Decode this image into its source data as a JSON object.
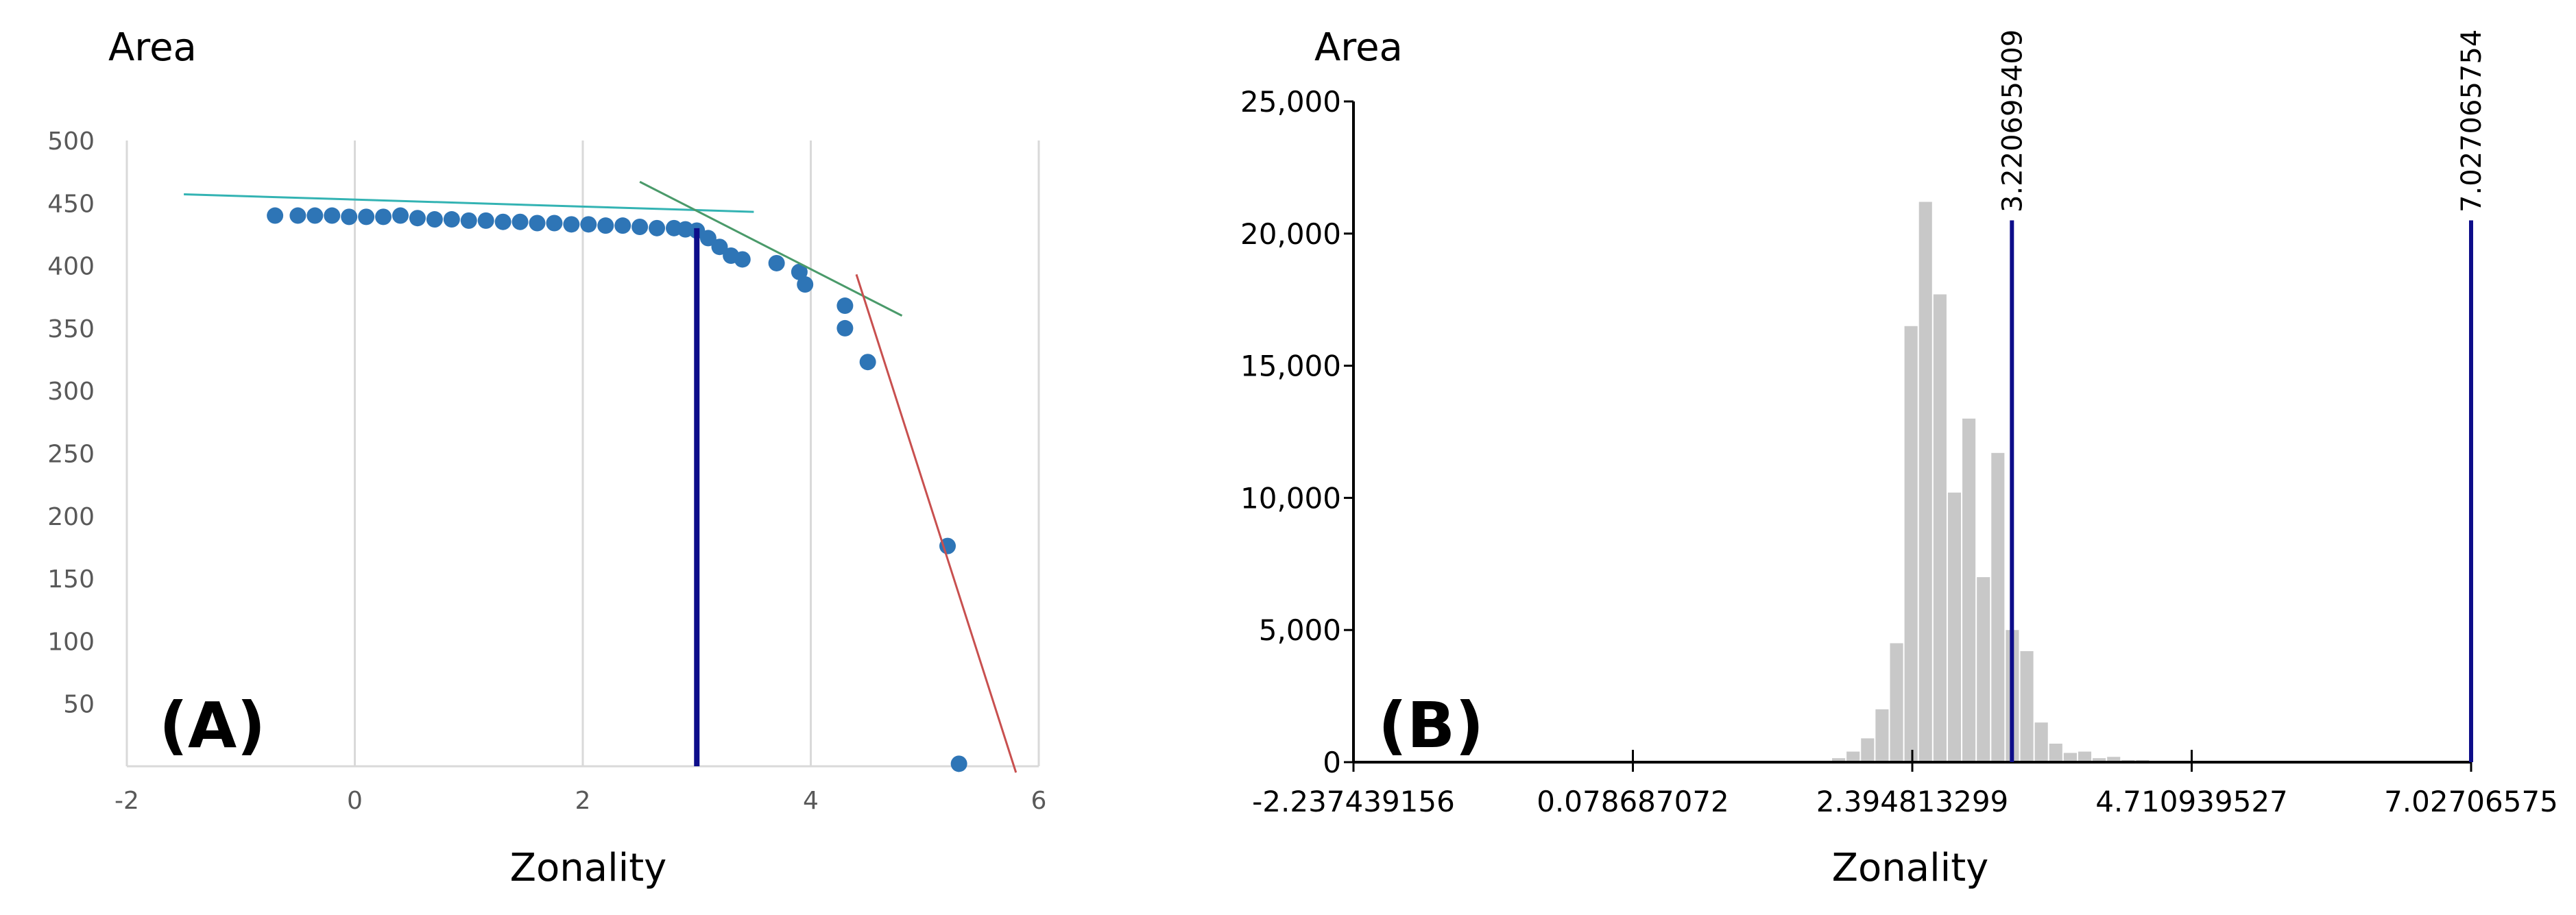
{
  "chart_data": [
    {
      "panel_label": "(A)",
      "type": "scatter",
      "ylabel": "Area",
      "xlabel": "Zonality",
      "xlim": [
        -2,
        6
      ],
      "ylim": [
        0,
        500
      ],
      "x_ticks": [
        "-2",
        "0",
        "2",
        "4",
        "6"
      ],
      "y_ticks": [
        "50",
        "100",
        "150",
        "200",
        "250",
        "300",
        "350",
        "400",
        "450",
        "500"
      ],
      "grid": true,
      "colors": {
        "points": "#2e75b6",
        "fit1": "#33b3b3",
        "fit2": "#4a9a6a",
        "fit3": "#c8504f",
        "threshold": "#0d0d8a"
      },
      "points": [
        {
          "x": -0.7,
          "y": 440
        },
        {
          "x": -0.5,
          "y": 440
        },
        {
          "x": -0.35,
          "y": 440
        },
        {
          "x": -0.2,
          "y": 440
        },
        {
          "x": -0.05,
          "y": 439
        },
        {
          "x": 0.1,
          "y": 439
        },
        {
          "x": 0.25,
          "y": 439
        },
        {
          "x": 0.4,
          "y": 440
        },
        {
          "x": 0.55,
          "y": 438
        },
        {
          "x": 0.7,
          "y": 437
        },
        {
          "x": 0.85,
          "y": 437
        },
        {
          "x": 1.0,
          "y": 436
        },
        {
          "x": 1.15,
          "y": 436
        },
        {
          "x": 1.3,
          "y": 435
        },
        {
          "x": 1.45,
          "y": 435
        },
        {
          "x": 1.6,
          "y": 434
        },
        {
          "x": 1.75,
          "y": 434
        },
        {
          "x": 1.9,
          "y": 433
        },
        {
          "x": 2.05,
          "y": 433
        },
        {
          "x": 2.2,
          "y": 432
        },
        {
          "x": 2.35,
          "y": 432
        },
        {
          "x": 2.5,
          "y": 431
        },
        {
          "x": 2.65,
          "y": 430
        },
        {
          "x": 2.8,
          "y": 430
        },
        {
          "x": 2.9,
          "y": 429
        },
        {
          "x": 3.0,
          "y": 428
        },
        {
          "x": 3.1,
          "y": 422
        },
        {
          "x": 3.2,
          "y": 415
        },
        {
          "x": 3.3,
          "y": 408
        },
        {
          "x": 3.4,
          "y": 405
        },
        {
          "x": 3.7,
          "y": 402
        },
        {
          "x": 3.9,
          "y": 395
        },
        {
          "x": 3.95,
          "y": 385
        },
        {
          "x": 4.3,
          "y": 368
        },
        {
          "x": 4.3,
          "y": 350
        },
        {
          "x": 4.5,
          "y": 323
        },
        {
          "x": 5.2,
          "y": 176
        },
        {
          "x": 5.3,
          "y": 2
        }
      ],
      "fit_lines": [
        {
          "x": [
            -1.5,
            3.5
          ],
          "y": [
            457,
            443
          ]
        },
        {
          "x": [
            2.5,
            4.8
          ],
          "y": [
            467,
            360
          ]
        },
        {
          "x": [
            4.4,
            5.8
          ],
          "y": [
            393,
            -5
          ]
        }
      ],
      "threshold_x": 3.0
    },
    {
      "panel_label": "(B)",
      "type": "bar",
      "ylabel": "Area",
      "xlabel": "Zonality",
      "xlim": [
        -2.237439156,
        7.027065754
      ],
      "ylim": [
        0,
        25000
      ],
      "x_ticks": [
        "-2.237439156",
        "0.078687072",
        "2.394813299",
        "4.710939527",
        "7.02706575"
      ],
      "y_ticks": [
        "0",
        "5,000",
        "10,000",
        "15,000",
        "20,000",
        "25,000"
      ],
      "colors": {
        "bars": "#c8c8c8",
        "threshold": "#0d0d8a"
      },
      "histogram": [
        {
          "x": 1.79,
          "y": 150
        },
        {
          "x": 1.91,
          "y": 400
        },
        {
          "x": 2.03,
          "y": 900
        },
        {
          "x": 2.15,
          "y": 2000
        },
        {
          "x": 2.27,
          "y": 4500
        },
        {
          "x": 2.39,
          "y": 16500
        },
        {
          "x": 2.51,
          "y": 21200
        },
        {
          "x": 2.63,
          "y": 17700
        },
        {
          "x": 2.75,
          "y": 10200
        },
        {
          "x": 2.87,
          "y": 13000
        },
        {
          "x": 2.99,
          "y": 7000
        },
        {
          "x": 3.11,
          "y": 11700
        },
        {
          "x": 3.23,
          "y": 5000
        },
        {
          "x": 3.35,
          "y": 4200
        },
        {
          "x": 3.47,
          "y": 1500
        },
        {
          "x": 3.59,
          "y": 700
        },
        {
          "x": 3.71,
          "y": 350
        },
        {
          "x": 3.83,
          "y": 400
        },
        {
          "x": 3.95,
          "y": 150
        },
        {
          "x": 4.07,
          "y": 200
        },
        {
          "x": 4.19,
          "y": 80
        },
        {
          "x": 4.31,
          "y": 80
        }
      ],
      "thresholds": [
        {
          "value": 3.220695409,
          "label": "3.220695409"
        },
        {
          "value": 7.027065754,
          "label": "7.027065754"
        }
      ]
    }
  ]
}
